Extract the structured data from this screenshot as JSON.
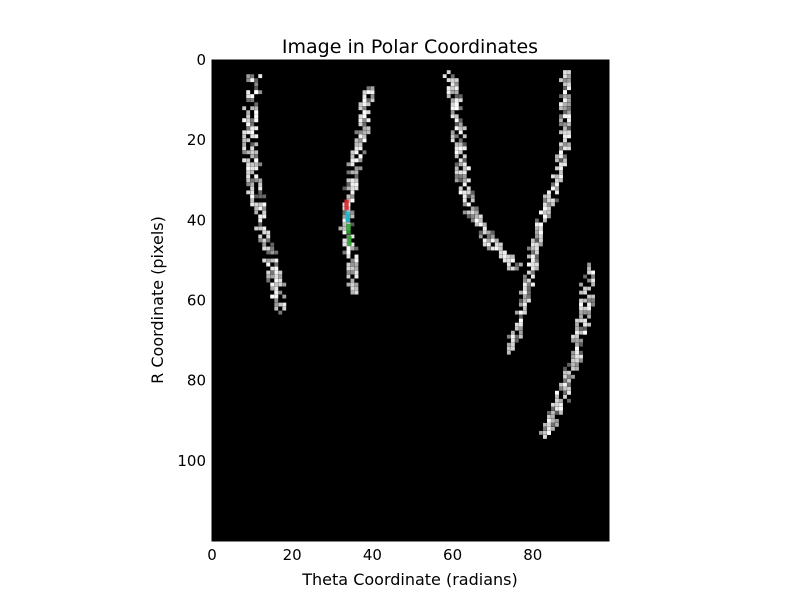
{
  "chart_data": {
    "type": "heatmap",
    "title": "Image in Polar Coordinates",
    "xlabel": "Theta Coordinate (radians)",
    "ylabel": "R Coordinate (pixels)",
    "xlim": [
      0,
      99
    ],
    "ylim": [
      120,
      0
    ],
    "x_ticks": [
      0,
      20,
      40,
      60,
      80
    ],
    "y_ticks": [
      0,
      20,
      40,
      60,
      80,
      100
    ],
    "grid": false,
    "legend": "none",
    "background_color": "#000000",
    "foreground_color": "#ffffff",
    "highlight_color": "#d62728",
    "highlight_color_2": "#2ca02c",
    "highlight_color_3": "#17becf",
    "features": [
      {
        "name": "arc-1",
        "points": [
          [
            10.5,
            4
          ],
          [
            10.2,
            10
          ],
          [
            9.6,
            16
          ],
          [
            9.2,
            22
          ],
          [
            10.2,
            28
          ],
          [
            11,
            34
          ],
          [
            12,
            40
          ],
          [
            13.5,
            46
          ],
          [
            15,
            52
          ],
          [
            16.5,
            58
          ],
          [
            17,
            62
          ]
        ],
        "width": 3.5,
        "intensity": 0.85
      },
      {
        "name": "arc-2",
        "points": [
          [
            39,
            7
          ],
          [
            38,
            14
          ],
          [
            36.5,
            22
          ],
          [
            35,
            30
          ],
          [
            34,
            36
          ],
          [
            33.5,
            42
          ],
          [
            34.5,
            48
          ],
          [
            35.5,
            54
          ],
          [
            36,
            58
          ]
        ],
        "width": 2.6,
        "intensity": 0.8
      },
      {
        "name": "arc-3",
        "points": [
          [
            59.5,
            4
          ],
          [
            61,
            12
          ],
          [
            62,
            22
          ],
          [
            63,
            32
          ],
          [
            65,
            38
          ],
          [
            68,
            43
          ],
          [
            71,
            47
          ],
          [
            74,
            50
          ],
          [
            76,
            52
          ]
        ],
        "width": 3.2,
        "intensity": 0.85
      },
      {
        "name": "arc-4",
        "points": [
          [
            88,
            3
          ],
          [
            88.5,
            12
          ],
          [
            88,
            22
          ],
          [
            85.5,
            32
          ],
          [
            82,
            40
          ],
          [
            80,
            50
          ],
          [
            78,
            60
          ],
          [
            76,
            68
          ],
          [
            74,
            72
          ]
        ],
        "width": 2.4,
        "intensity": 0.7
      },
      {
        "name": "arc-5",
        "points": [
          [
            94,
            52
          ],
          [
            93.5,
            60
          ],
          [
            92,
            68
          ],
          [
            90,
            76
          ],
          [
            88,
            82
          ],
          [
            85.5,
            88
          ],
          [
            83.5,
            94
          ]
        ],
        "width": 3,
        "intensity": 0.8
      }
    ],
    "highlight_points": [
      [
        33.5,
        36
      ],
      [
        33.8,
        39
      ],
      [
        34,
        42
      ],
      [
        34.2,
        45
      ]
    ]
  }
}
